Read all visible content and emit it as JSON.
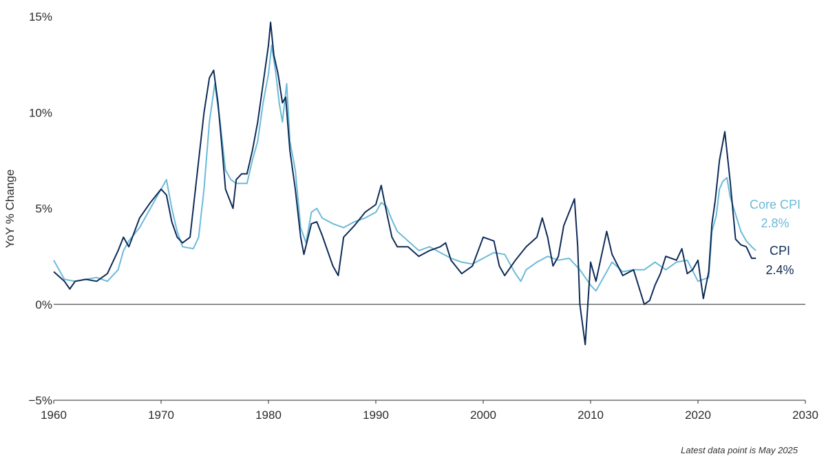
{
  "chart_data": {
    "type": "line",
    "ylabel": "YoY % Change",
    "xlim": [
      1960,
      2030
    ],
    "ylim": [
      -5,
      15
    ],
    "x_ticks": [
      "1960",
      "1970",
      "1980",
      "1990",
      "2000",
      "2010",
      "2020",
      "2030"
    ],
    "y_ticks": [
      "15%",
      "10%",
      "5%",
      "0%",
      "−5%"
    ],
    "grid": false,
    "colors": {
      "cpi": "#0d2a57",
      "core": "#6bbad8"
    },
    "series": [
      {
        "key": "core",
        "name": "Core CPI",
        "label_value": "2.8%",
        "points": [
          [
            1960,
            2.3
          ],
          [
            1961,
            1.3
          ],
          [
            1962,
            1.2
          ],
          [
            1963,
            1.3
          ],
          [
            1964,
            1.4
          ],
          [
            1965,
            1.2
          ],
          [
            1966,
            1.8
          ],
          [
            1966.5,
            2.8
          ],
          [
            1967,
            3.3
          ],
          [
            1968,
            4.0
          ],
          [
            1969,
            5.0
          ],
          [
            1970,
            6.0
          ],
          [
            1970.5,
            6.5
          ],
          [
            1971,
            5.0
          ],
          [
            1971.5,
            3.8
          ],
          [
            1972,
            3.0
          ],
          [
            1973,
            2.9
          ],
          [
            1973.5,
            3.5
          ],
          [
            1974,
            6.0
          ],
          [
            1974.5,
            9.5
          ],
          [
            1975,
            11.5
          ],
          [
            1975.5,
            9.5
          ],
          [
            1976,
            7.0
          ],
          [
            1976.5,
            6.5
          ],
          [
            1977,
            6.3
          ],
          [
            1978,
            6.3
          ],
          [
            1978.5,
            7.5
          ],
          [
            1979,
            8.5
          ],
          [
            1979.5,
            10.5
          ],
          [
            1980,
            12.0
          ],
          [
            1980.3,
            13.5
          ],
          [
            1980.7,
            12.0
          ],
          [
            1981,
            10.5
          ],
          [
            1981.3,
            9.5
          ],
          [
            1981.7,
            11.5
          ],
          [
            1982,
            8.5
          ],
          [
            1982.5,
            7.0
          ],
          [
            1983,
            4.0
          ],
          [
            1983.5,
            3.2
          ],
          [
            1984,
            4.8
          ],
          [
            1984.5,
            5.0
          ],
          [
            1985,
            4.5
          ],
          [
            1986,
            4.2
          ],
          [
            1987,
            4.0
          ],
          [
            1988,
            4.3
          ],
          [
            1989,
            4.5
          ],
          [
            1990,
            4.8
          ],
          [
            1990.5,
            5.3
          ],
          [
            1991,
            5.1
          ],
          [
            1991.5,
            4.4
          ],
          [
            1992,
            3.8
          ],
          [
            1993,
            3.3
          ],
          [
            1994,
            2.8
          ],
          [
            1995,
            3.0
          ],
          [
            1996,
            2.7
          ],
          [
            1997,
            2.4
          ],
          [
            1998,
            2.2
          ],
          [
            1999,
            2.1
          ],
          [
            2000,
            2.4
          ],
          [
            2001,
            2.7
          ],
          [
            2002,
            2.6
          ],
          [
            2003,
            1.6
          ],
          [
            2003.5,
            1.2
          ],
          [
            2004,
            1.8
          ],
          [
            2005,
            2.2
          ],
          [
            2006,
            2.5
          ],
          [
            2007,
            2.3
          ],
          [
            2008,
            2.4
          ],
          [
            2009,
            1.8
          ],
          [
            2010,
            1.0
          ],
          [
            2010.5,
            0.7
          ],
          [
            2011,
            1.2
          ],
          [
            2012,
            2.2
          ],
          [
            2013,
            1.7
          ],
          [
            2014,
            1.8
          ],
          [
            2015,
            1.8
          ],
          [
            2016,
            2.2
          ],
          [
            2017,
            1.8
          ],
          [
            2018,
            2.2
          ],
          [
            2019,
            2.3
          ],
          [
            2020,
            1.2
          ],
          [
            2021,
            1.4
          ],
          [
            2021.3,
            3.8
          ],
          [
            2021.7,
            4.6
          ],
          [
            2022,
            6.0
          ],
          [
            2022.3,
            6.4
          ],
          [
            2022.7,
            6.6
          ],
          [
            2023,
            5.6
          ],
          [
            2023.5,
            4.7
          ],
          [
            2024,
            3.8
          ],
          [
            2024.5,
            3.3
          ],
          [
            2025,
            3.0
          ],
          [
            2025.4,
            2.8
          ]
        ]
      },
      {
        "key": "cpi",
        "name": "CPI",
        "label_value": "2.4%",
        "points": [
          [
            1960,
            1.7
          ],
          [
            1961,
            1.2
          ],
          [
            1961.5,
            0.8
          ],
          [
            1962,
            1.2
          ],
          [
            1963,
            1.3
          ],
          [
            1964,
            1.2
          ],
          [
            1965,
            1.6
          ],
          [
            1966,
            2.8
          ],
          [
            1966.5,
            3.5
          ],
          [
            1967,
            3.0
          ],
          [
            1968,
            4.5
          ],
          [
            1969,
            5.3
          ],
          [
            1970,
            6.0
          ],
          [
            1970.5,
            5.7
          ],
          [
            1971,
            4.3
          ],
          [
            1971.5,
            3.5
          ],
          [
            1972,
            3.2
          ],
          [
            1972.7,
            3.5
          ],
          [
            1973,
            5.0
          ],
          [
            1973.5,
            7.5
          ],
          [
            1974,
            10.0
          ],
          [
            1974.5,
            11.8
          ],
          [
            1974.9,
            12.2
          ],
          [
            1975.3,
            10.5
          ],
          [
            1975.7,
            8.0
          ],
          [
            1976,
            6.0
          ],
          [
            1976.7,
            5.0
          ],
          [
            1977,
            6.5
          ],
          [
            1977.5,
            6.8
          ],
          [
            1978,
            6.8
          ],
          [
            1978.5,
            8.0
          ],
          [
            1979,
            9.5
          ],
          [
            1979.5,
            11.5
          ],
          [
            1980,
            13.5
          ],
          [
            1980.2,
            14.7
          ],
          [
            1980.5,
            13.0
          ],
          [
            1980.9,
            12.0
          ],
          [
            1981.3,
            10.5
          ],
          [
            1981.6,
            10.8
          ],
          [
            1982,
            8.0
          ],
          [
            1982.5,
            6.0
          ],
          [
            1983,
            3.5
          ],
          [
            1983.3,
            2.6
          ],
          [
            1984,
            4.2
          ],
          [
            1984.5,
            4.3
          ],
          [
            1985,
            3.6
          ],
          [
            1986,
            2.0
          ],
          [
            1986.5,
            1.5
          ],
          [
            1987,
            3.5
          ],
          [
            1988,
            4.1
          ],
          [
            1989,
            4.8
          ],
          [
            1989.5,
            5.0
          ],
          [
            1990,
            5.2
          ],
          [
            1990.5,
            6.2
          ],
          [
            1991,
            4.8
          ],
          [
            1991.5,
            3.5
          ],
          [
            1992,
            3.0
          ],
          [
            1993,
            3.0
          ],
          [
            1994,
            2.5
          ],
          [
            1995,
            2.8
          ],
          [
            1996,
            3.0
          ],
          [
            1996.5,
            3.2
          ],
          [
            1997,
            2.3
          ],
          [
            1998,
            1.6
          ],
          [
            1999,
            2.0
          ],
          [
            2000,
            3.5
          ],
          [
            2001,
            3.3
          ],
          [
            2001.5,
            2.0
          ],
          [
            2002,
            1.5
          ],
          [
            2003,
            2.3
          ],
          [
            2004,
            3.0
          ],
          [
            2005,
            3.5
          ],
          [
            2005.5,
            4.5
          ],
          [
            2006,
            3.5
          ],
          [
            2006.5,
            2.0
          ],
          [
            2007,
            2.5
          ],
          [
            2007.5,
            4.1
          ],
          [
            2008,
            4.8
          ],
          [
            2008.5,
            5.5
          ],
          [
            2008.8,
            3.0
          ],
          [
            2009,
            0.0
          ],
          [
            2009.5,
            -2.1
          ],
          [
            2010,
            2.2
          ],
          [
            2010.5,
            1.2
          ],
          [
            2011,
            2.5
          ],
          [
            2011.5,
            3.8
          ],
          [
            2012,
            2.6
          ],
          [
            2013,
            1.5
          ],
          [
            2014,
            1.8
          ],
          [
            2015,
            0.0
          ],
          [
            2015.5,
            0.2
          ],
          [
            2016,
            1.0
          ],
          [
            2016.5,
            1.6
          ],
          [
            2017,
            2.5
          ],
          [
            2018,
            2.3
          ],
          [
            2018.5,
            2.9
          ],
          [
            2019,
            1.6
          ],
          [
            2019.5,
            1.8
          ],
          [
            2020,
            2.3
          ],
          [
            2020.5,
            0.3
          ],
          [
            2021,
            1.7
          ],
          [
            2021.3,
            4.2
          ],
          [
            2021.6,
            5.4
          ],
          [
            2022,
            7.5
          ],
          [
            2022.5,
            9.0
          ],
          [
            2023,
            6.4
          ],
          [
            2023.5,
            3.4
          ],
          [
            2024,
            3.1
          ],
          [
            2024.5,
            3.0
          ],
          [
            2025,
            2.4
          ],
          [
            2025.4,
            2.4
          ]
        ]
      }
    ],
    "note": "Latest data point is May 2025"
  }
}
